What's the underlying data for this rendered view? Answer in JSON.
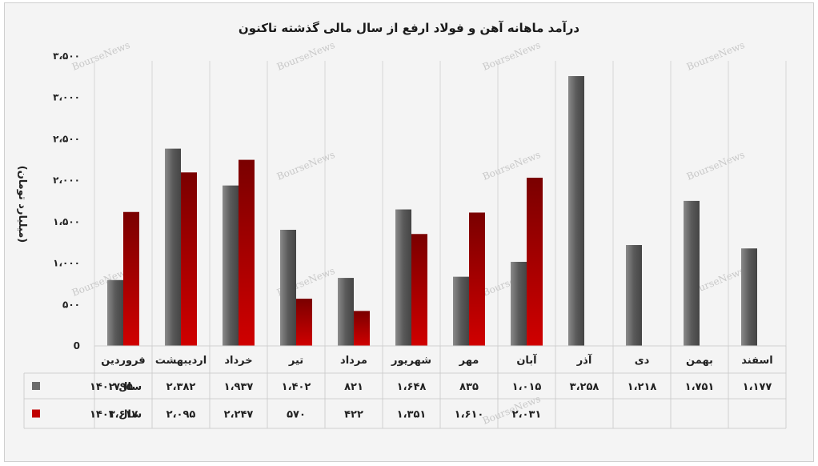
{
  "chart_data": {
    "type": "bar",
    "title": "درآمد ماهانه آهن و فولاد ارفع از سال مالی گذشته تاکنون",
    "ylabel": "(میلیارد تومان)",
    "ylim": [
      0,
      3500
    ],
    "yticks": [
      0,
      500,
      1000,
      1500,
      2000,
      2500,
      3000,
      3500
    ],
    "ytick_labels": [
      "0",
      "۵۰۰",
      "۱،۰۰۰",
      "۱،۵۰۰",
      "۲،۰۰۰",
      "۲،۵۰۰",
      "۳،۰۰۰",
      "۳،۵۰۰"
    ],
    "grid": "vertical-category-lines",
    "legend": "data-table",
    "categories": [
      "فروردین",
      "اردیبهشت",
      "خرداد",
      "تیر",
      "مرداد",
      "شهریور",
      "مهر",
      "آبان",
      "آذر",
      "دی",
      "بهمن",
      "اسفند"
    ],
    "series": [
      {
        "name": "سال ۱۴۰۲",
        "color": "#6b6b6b",
        "values": [
          795,
          2382,
          1937,
          1402,
          821,
          1648,
          835,
          1015,
          3258,
          1218,
          1751,
          1177
        ],
        "labels": [
          "۷۹۵",
          "۲،۳۸۲",
          "۱،۹۳۷",
          "۱،۴۰۲",
          "۸۲۱",
          "۱،۶۴۸",
          "۸۳۵",
          "۱،۰۱۵",
          "۳،۲۵۸",
          "۱،۲۱۸",
          "۱،۷۵۱",
          "۱،۱۷۷"
        ]
      },
      {
        "name": "سال ۱۴۰۳",
        "color": "#c00000",
        "values": [
          1617,
          2095,
          2247,
          570,
          422,
          1351,
          1610,
          2031,
          null,
          null,
          null,
          null
        ],
        "labels": [
          "۱،۶۱۷",
          "۲،۰۹۵",
          "۲،۲۴۷",
          "۵۷۰",
          "۴۲۲",
          "۱،۳۵۱",
          "۱،۶۱۰",
          "۲،۰۳۱",
          "",
          "",
          "",
          ""
        ]
      }
    ]
  },
  "watermark": "BourseNews"
}
